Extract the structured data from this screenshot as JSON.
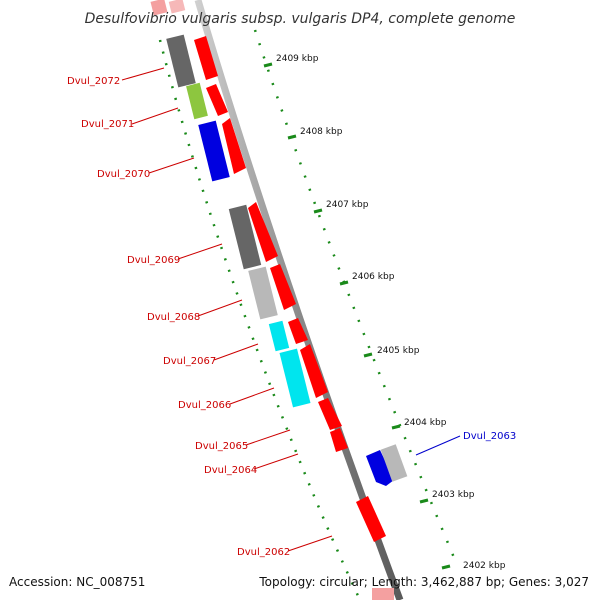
{
  "title": "Desulfovibrio vulgaris subsp. vulgaris DP4, complete genome",
  "accession": "Accession: NC_008751",
  "stats": "Topology: circular; Length: 3,462,887 bp; Genes: 3,027",
  "kbp_ticks": [
    "2409 kbp",
    "2408 kbp",
    "2407 kbp",
    "2406 kbp",
    "2405 kbp",
    "2404 kbp",
    "2403 kbp",
    "2402 kbp"
  ],
  "gene_labels": [
    {
      "name": "Dvul_2072",
      "color": "#cc0000"
    },
    {
      "name": "Dvul_2071",
      "color": "#cc0000"
    },
    {
      "name": "Dvul_2070",
      "color": "#cc0000"
    },
    {
      "name": "Dvul_2069",
      "color": "#cc0000"
    },
    {
      "name": "Dvul_2068",
      "color": "#cc0000"
    },
    {
      "name": "Dvul_2067",
      "color": "#cc0000"
    },
    {
      "name": "Dvul_2066",
      "color": "#cc0000"
    },
    {
      "name": "Dvul_2065",
      "color": "#cc0000"
    },
    {
      "name": "Dvul_2064",
      "color": "#cc0000"
    },
    {
      "name": "Dvul_2063",
      "color": "#0000cc"
    },
    {
      "name": "Dvul_2062",
      "color": "#cc0000"
    }
  ],
  "colors": {
    "cds": "#ff0000",
    "backbone": "#888888",
    "gc_dots": "#1a8a1a",
    "gray_dark": "#666666",
    "gray_light": "#b8b8b8",
    "green": "#8dc63f",
    "blue": "#0000e0",
    "cyan": "#00e5ee"
  }
}
